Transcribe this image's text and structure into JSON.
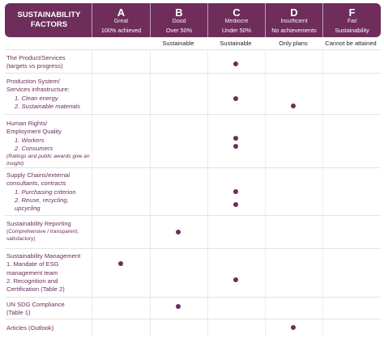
{
  "header": {
    "factors_line1": "SUSTAINABILITY",
    "factors_line2": "FACTORS",
    "columns": [
      {
        "letter": "A",
        "desc": "Great",
        "sub": "100% achieved"
      },
      {
        "letter": "B",
        "desc": "Good",
        "sub": "Over 50%"
      },
      {
        "letter": "C",
        "desc": "Mediocre",
        "sub": "Under 50%"
      },
      {
        "letter": "D",
        "desc": "Insufficient",
        "sub": "No achievements"
      },
      {
        "letter": "F",
        "desc": "Fail",
        "sub": "Sustainability"
      }
    ]
  },
  "subheader": {
    "A": "",
    "B": "Sustainable",
    "C": "Sustainable",
    "D": "Only plans",
    "F": "Cannot be attained"
  },
  "rows": [
    {
      "lines": [
        "The Product/Services",
        "(targets vs progress)"
      ],
      "ratings": [
        "C"
      ]
    },
    {
      "lines": [
        "Production System/",
        "Services infrastructure:"
      ],
      "items": [
        "1. Clean energy",
        "2. Sustainable materials"
      ],
      "ratings": [
        "C",
        "D"
      ]
    },
    {
      "lines": [
        "Human Rights/",
        "Employment Quality"
      ],
      "items": [
        "1. Workers",
        "2. Consumers"
      ],
      "note": "(Ratings and public awards give an insight)",
      "ratings": [
        "C",
        "C"
      ]
    },
    {
      "lines": [
        "Supply Chains/external",
        "consultants, contracts"
      ],
      "items": [
        "1. Purchasing  criterion",
        "2. Reuse, recycling,",
        "upcycling"
      ],
      "ratings": [
        "C",
        "C"
      ]
    },
    {
      "lines": [
        "Sustainability Reporting"
      ],
      "small": "(Comprehensive / transparent, satisfactory)",
      "ratings": [
        "B"
      ]
    },
    {
      "lines": [
        "Sustainability Management",
        "1. Mandate of ESG",
        "management team",
        "2. Recognition and",
        "Certification (Table 2)"
      ],
      "ratings": [
        "A",
        "C"
      ]
    },
    {
      "lines": [
        "UN SDG Compliance",
        "(Table 1)"
      ],
      "ratings": [
        "B"
      ]
    },
    {
      "lines": [
        "Articles (Outlook)"
      ],
      "ratings": [
        "D"
      ]
    }
  ]
}
